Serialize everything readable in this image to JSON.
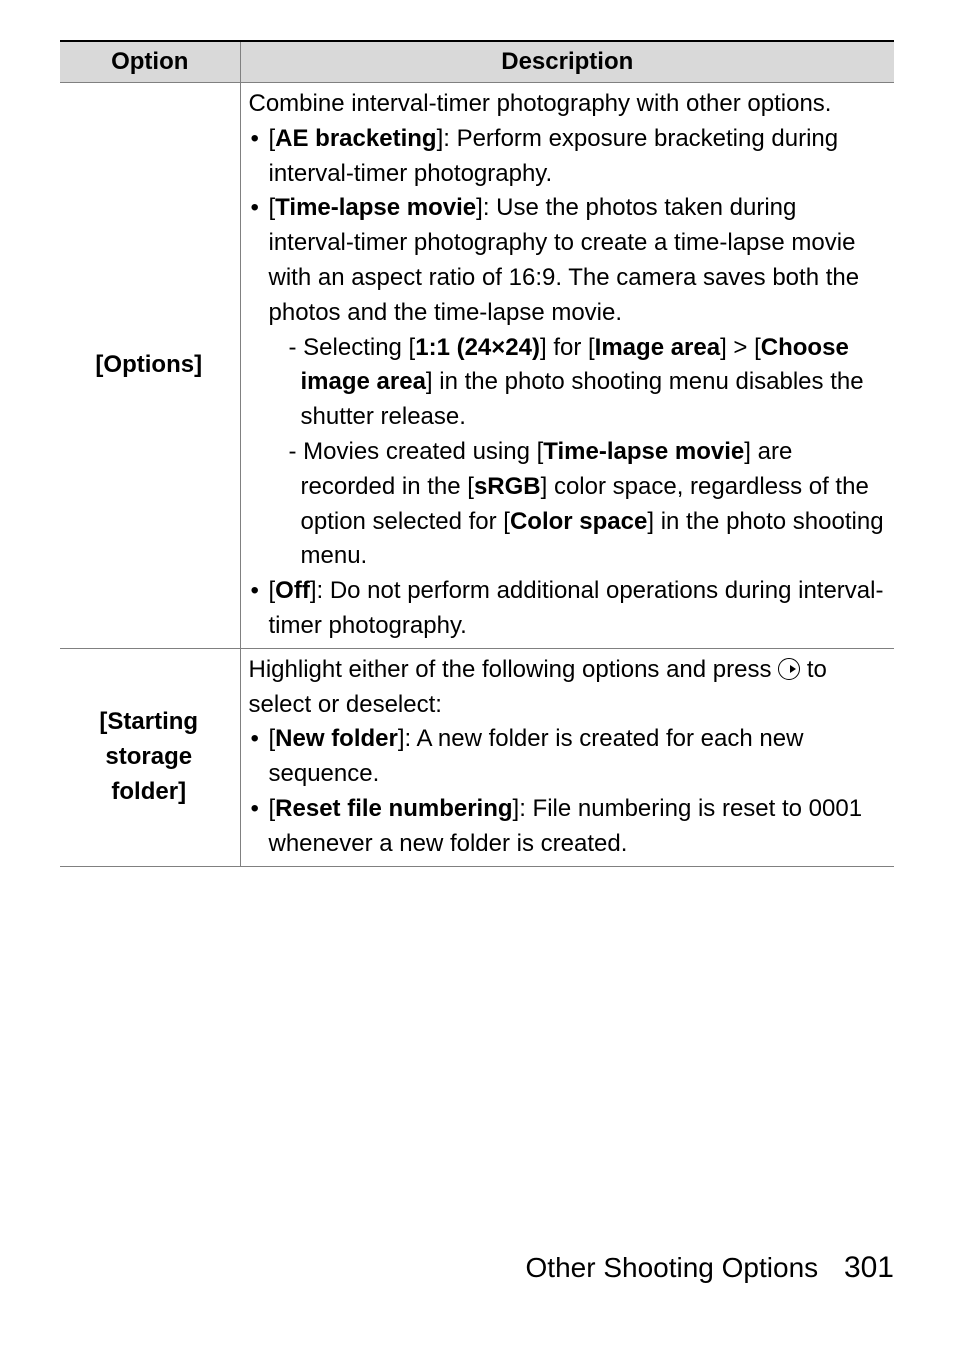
{
  "header": {
    "option": "Option",
    "description": "Description"
  },
  "rows": [
    {
      "option": "[Options]",
      "intro": "Combine interval-timer photography with other options.",
      "bullets": [
        {
          "lead": "[AE bracketing]",
          "text": ": Perform exposure bracketing during interval-timer photography."
        },
        {
          "lead": "[Time-lapse movie]",
          "text": ": Use the photos taken during interval-timer photography to create a time-lapse movie with an aspect ratio of 16:9. The camera saves both the photos and the time-lapse movie.",
          "subs": [
            {
              "prefix": "- Selecting [",
              "b1": "1:1 (24×24)",
              "mid1": "] for [",
              "b2": "Image area",
              "mid2": "] > [",
              "b3": "Choose image area",
              "tail": "] in the photo shooting menu disables the shutter release."
            },
            {
              "prefix": "- Movies created using [",
              "b1": "Time-lapse movie",
              "mid1": "] are recorded in the [",
              "b2": "sRGB",
              "mid2": "] color space, regardless of the option selected for [",
              "b3": "Color space",
              "tail": "] in the photo shooting menu."
            }
          ]
        },
        {
          "lead": "[Off]",
          "text": ": Do not perform additional operations during interval-timer photography."
        }
      ]
    },
    {
      "option": "[Starting storage folder]",
      "intro_pre": "Highlight either of the following options and press ",
      "intro_post": " to select or deselect:",
      "bullets": [
        {
          "lead": "[New folder]",
          "text": ": A new folder is created for each new sequence."
        },
        {
          "lead": "[Reset file numbering]",
          "text": ": File numbering is reset to 0001 whenever a new folder is created."
        }
      ]
    }
  ],
  "footer": {
    "label": "Other Shooting Options",
    "page": "301"
  }
}
